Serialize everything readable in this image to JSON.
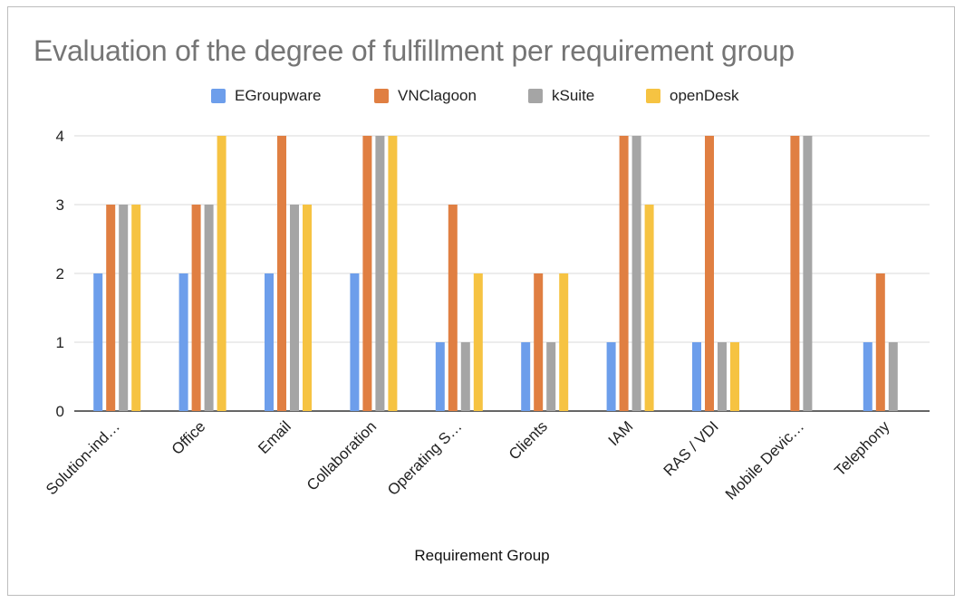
{
  "chart_data": {
    "type": "bar",
    "title": "Evaluation of the degree of fulfillment per requirement group",
    "xlabel": "Requirement Group",
    "ylabel": "",
    "ylim": [
      0,
      4
    ],
    "yticks": [
      0,
      1,
      2,
      3,
      4
    ],
    "grid": true,
    "legend_position": "top",
    "categories": [
      "Solution-ind…",
      "Office",
      "Email",
      "Collaboration",
      "Operating S…",
      "Clients",
      "IAM",
      "RAS / VDI",
      "Mobile Devic…",
      "Telephony"
    ],
    "series": [
      {
        "name": "EGroupware",
        "color": "#6d9eeb",
        "values": [
          2,
          2,
          2,
          2,
          1,
          1,
          1,
          1,
          0,
          1
        ]
      },
      {
        "name": "VNClagoon",
        "color": "#e07f42",
        "values": [
          3,
          3,
          4,
          4,
          3,
          2,
          4,
          4,
          4,
          2
        ]
      },
      {
        "name": "kSuite",
        "color": "#a5a5a5",
        "values": [
          3,
          3,
          3,
          4,
          1,
          1,
          4,
          1,
          4,
          1
        ]
      },
      {
        "name": "openDesk",
        "color": "#f6c342",
        "values": [
          3,
          4,
          3,
          4,
          2,
          2,
          3,
          1,
          0,
          0
        ]
      }
    ]
  }
}
